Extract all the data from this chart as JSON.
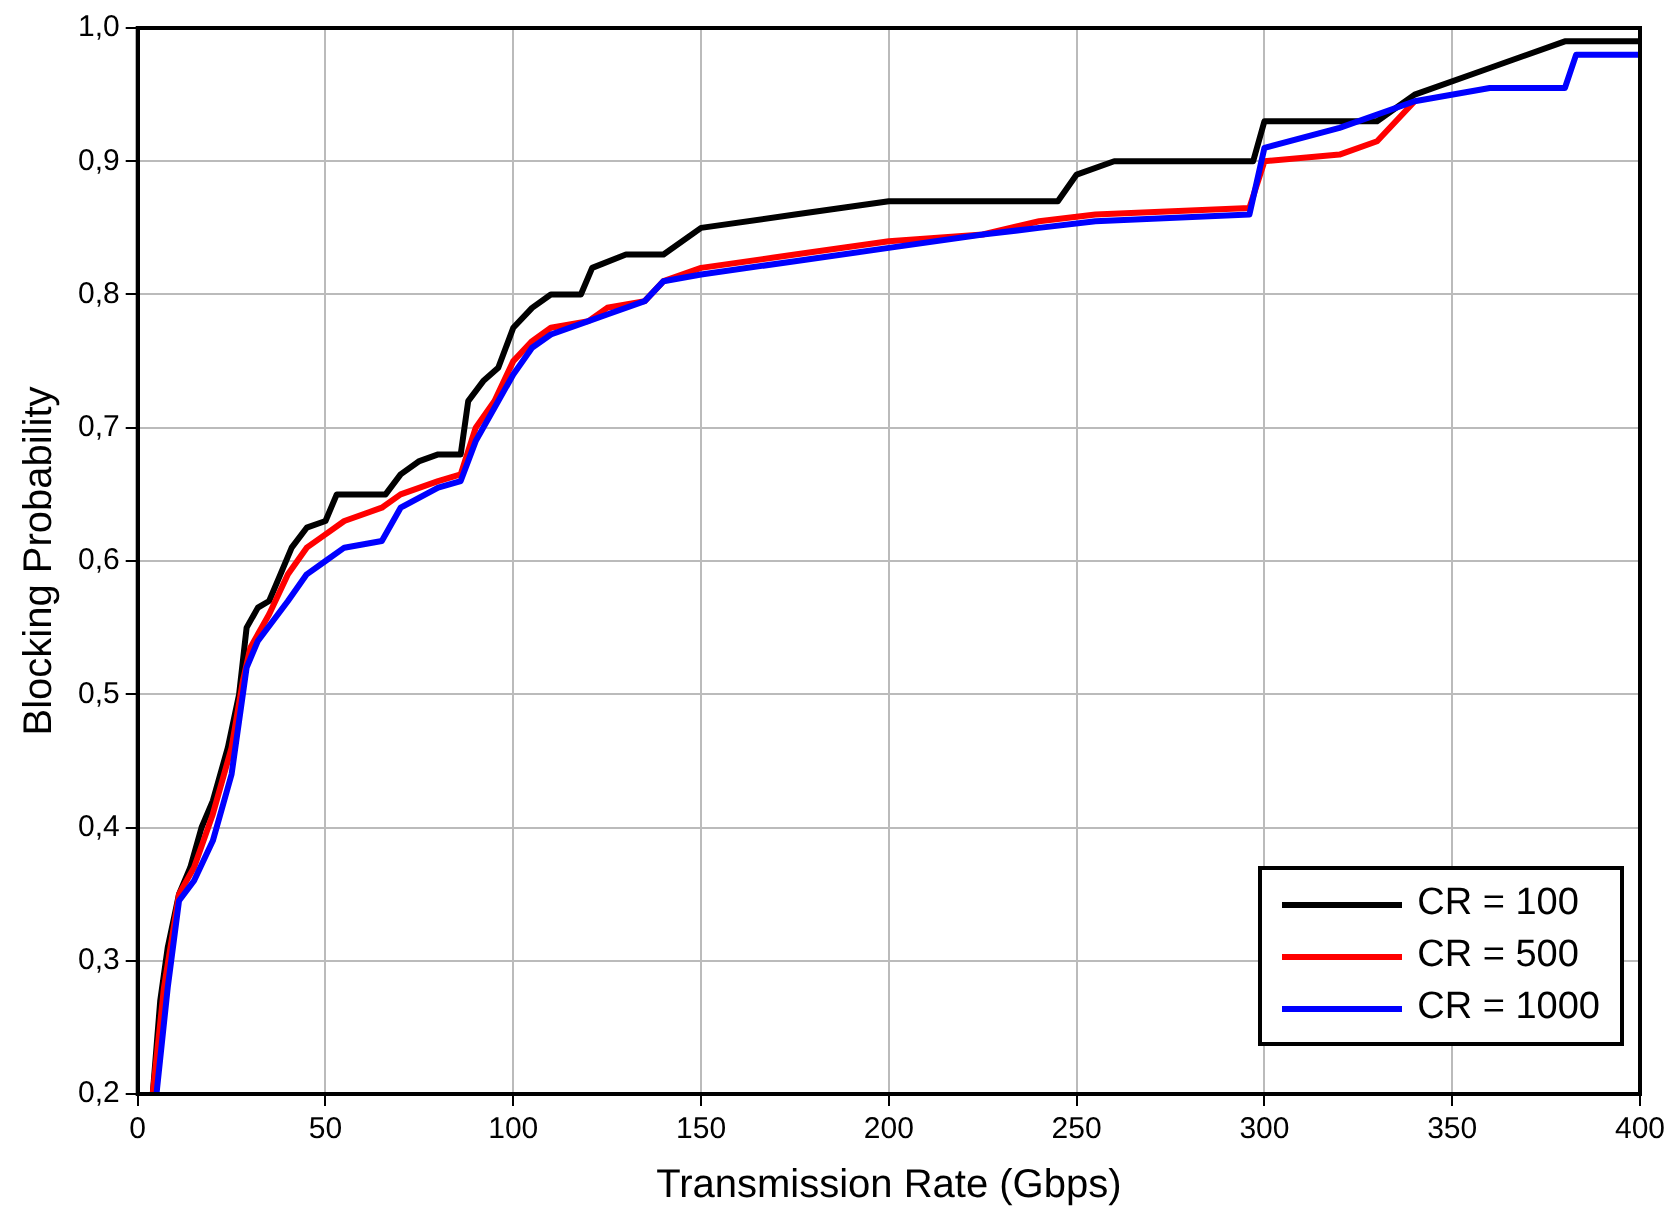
{
  "chart_data": {
    "type": "line",
    "xlabel": "Transmission Rate (Gbps)",
    "ylabel": "Blocking Probability",
    "xlim": [
      0,
      400
    ],
    "xticks": [
      0,
      50,
      100,
      150,
      200,
      250,
      300,
      350,
      400
    ],
    "ylim": [
      0.2,
      1.0
    ],
    "yticks": [
      {
        "value": 0.2,
        "label": "0,2"
      },
      {
        "value": 0.3,
        "label": "0,3"
      },
      {
        "value": 0.4,
        "label": "0,4"
      },
      {
        "value": 0.5,
        "label": "0,5"
      },
      {
        "value": 0.6,
        "label": "0,6"
      },
      {
        "value": 0.7,
        "label": "0,7"
      },
      {
        "value": 0.8,
        "label": "0,8"
      },
      {
        "value": 0.9,
        "label": "0,9"
      },
      {
        "value": 1.0,
        "label": "1,0"
      }
    ],
    "grid": true,
    "legend": "bottom right",
    "marker": "none",
    "line_style": "solid",
    "series": [
      {
        "name": "CR = 100",
        "color": "#000000",
        "x": [
          4,
          6,
          8,
          11,
          14,
          17,
          20,
          24,
          27,
          29,
          32,
          35,
          38,
          41,
          45,
          50,
          53,
          66,
          70,
          75,
          80,
          86,
          88,
          92,
          96,
          100,
          105,
          110,
          118,
          121,
          130,
          140,
          150,
          175,
          200,
          245,
          250,
          260,
          297,
          300,
          330,
          340,
          360,
          380,
          400
        ],
        "values": [
          0.2,
          0.27,
          0.31,
          0.35,
          0.37,
          0.4,
          0.42,
          0.46,
          0.5,
          0.55,
          0.565,
          0.57,
          0.59,
          0.61,
          0.625,
          0.63,
          0.65,
          0.65,
          0.665,
          0.675,
          0.68,
          0.68,
          0.72,
          0.735,
          0.745,
          0.775,
          0.79,
          0.8,
          0.8,
          0.82,
          0.83,
          0.83,
          0.85,
          0.86,
          0.87,
          0.87,
          0.89,
          0.9,
          0.9,
          0.93,
          0.93,
          0.95,
          0.97,
          0.99,
          0.99
        ]
      },
      {
        "name": "CR = 500",
        "color": "#ff0000",
        "x": [
          4,
          7,
          11,
          15,
          20,
          25,
          28,
          30,
          35,
          40,
          45,
          50,
          55,
          65,
          70,
          80,
          86,
          90,
          95,
          100,
          105,
          110,
          120,
          125,
          135,
          140,
          150,
          175,
          200,
          225,
          240,
          255,
          296,
          300,
          320,
          330,
          340
        ],
        "values": [
          0.2,
          0.28,
          0.35,
          0.37,
          0.41,
          0.46,
          0.51,
          0.535,
          0.56,
          0.59,
          0.61,
          0.62,
          0.63,
          0.64,
          0.65,
          0.66,
          0.665,
          0.7,
          0.72,
          0.75,
          0.765,
          0.775,
          0.78,
          0.79,
          0.795,
          0.81,
          0.82,
          0.83,
          0.84,
          0.845,
          0.855,
          0.86,
          0.865,
          0.9,
          0.905,
          0.915,
          0.945
        ]
      },
      {
        "name": "CR = 1000",
        "color": "#0000ff",
        "x": [
          5,
          8,
          11,
          15,
          20,
          25,
          29,
          32,
          40,
          45,
          50,
          55,
          65,
          70,
          80,
          86,
          90,
          95,
          100,
          105,
          110,
          120,
          125,
          135,
          140,
          150,
          175,
          200,
          225,
          240,
          255,
          296,
          300,
          320,
          340,
          360,
          380,
          383,
          400
        ],
        "values": [
          0.2,
          0.28,
          0.345,
          0.36,
          0.39,
          0.44,
          0.52,
          0.54,
          0.57,
          0.59,
          0.6,
          0.61,
          0.615,
          0.64,
          0.655,
          0.66,
          0.69,
          0.715,
          0.74,
          0.76,
          0.77,
          0.78,
          0.785,
          0.795,
          0.81,
          0.815,
          0.825,
          0.835,
          0.845,
          0.85,
          0.855,
          0.86,
          0.91,
          0.925,
          0.945,
          0.955,
          0.955,
          0.98,
          0.98
        ]
      }
    ]
  }
}
